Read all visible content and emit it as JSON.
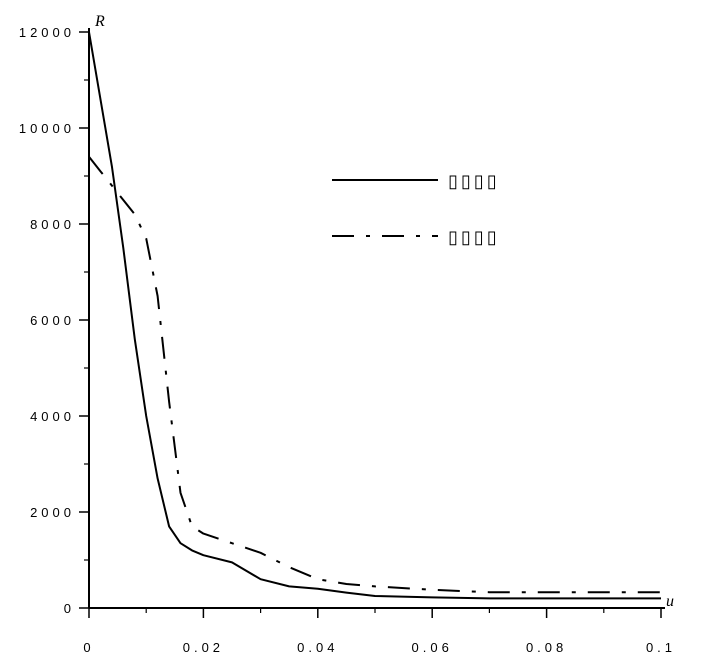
{
  "chart_data": {
    "type": "line",
    "xlabel": "u",
    "ylabel": "R",
    "xlim": [
      0,
      0.1
    ],
    "ylim": [
      0,
      12000
    ],
    "grid": false,
    "legend_position": "top-right",
    "x_ticks": [
      0,
      0.02,
      0.04,
      0.06,
      0.08,
      0.1
    ],
    "x_tick_labels": [
      "0",
      "0.02",
      "0.04",
      "0.06",
      "0.08",
      "0.1"
    ],
    "y_ticks": [
      0,
      2000,
      4000,
      6000,
      8000,
      10000,
      12000
    ],
    "y_tick_labels": [
      "0",
      "2000",
      "4000",
      "6000",
      "8000",
      "10000",
      "12000"
    ],
    "series": [
      {
        "name": "▯▯▯▯",
        "style": "solid",
        "x": [
          0,
          0.004,
          0.006,
          0.008,
          0.01,
          0.012,
          0.014,
          0.016,
          0.018,
          0.02,
          0.025,
          0.03,
          0.035,
          0.04,
          0.045,
          0.05,
          0.06,
          0.07,
          0.08,
          0.09,
          0.1
        ],
        "y": [
          12000,
          9200,
          7500,
          5600,
          4000,
          2700,
          1700,
          1350,
          1200,
          1100,
          950,
          600,
          450,
          400,
          320,
          250,
          220,
          200,
          200,
          200,
          200
        ]
      },
      {
        "name": "▯▯▯▯",
        "style": "dashdot",
        "x": [
          0,
          0.002,
          0.004,
          0.006,
          0.008,
          0.01,
          0.012,
          0.014,
          0.016,
          0.018,
          0.02,
          0.025,
          0.03,
          0.035,
          0.04,
          0.045,
          0.05,
          0.06,
          0.07,
          0.08,
          0.09,
          0.1
        ],
        "y": [
          9400,
          9100,
          8800,
          8500,
          8200,
          7700,
          6500,
          4300,
          2400,
          1700,
          1550,
          1350,
          1150,
          850,
          600,
          500,
          450,
          380,
          330,
          330,
          330,
          330
        ]
      }
    ]
  }
}
